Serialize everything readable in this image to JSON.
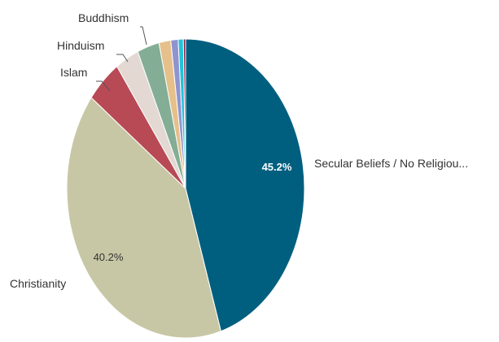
{
  "chart_data": {
    "type": "pie",
    "title": "",
    "slices": [
      {
        "label": "Secular Beliefs / No Religiou...",
        "value": 45.2,
        "color": "#005f7f",
        "data_label": "45.2%"
      },
      {
        "label": "Christianity",
        "value": 40.2,
        "color": "#c8c7a5",
        "data_label": "40.2%"
      },
      {
        "label": "Islam",
        "value": 4.8,
        "color": "#b84a55",
        "data_label": ""
      },
      {
        "label": "Hinduism",
        "value": 3.2,
        "color": "#e3d8d2",
        "data_label": ""
      },
      {
        "label": "Buddhism",
        "value": 3.0,
        "color": "#84ad96",
        "data_label": ""
      },
      {
        "label": "",
        "value": 1.6,
        "color": "#e5c08b",
        "data_label": ""
      },
      {
        "label": "",
        "value": 1.0,
        "color": "#8f94cf",
        "data_label": ""
      },
      {
        "label": "",
        "value": 0.7,
        "color": "#21c4d8",
        "data_label": ""
      },
      {
        "label": "",
        "value": 0.3,
        "color": "#8a1a3e",
        "data_label": ""
      }
    ]
  }
}
